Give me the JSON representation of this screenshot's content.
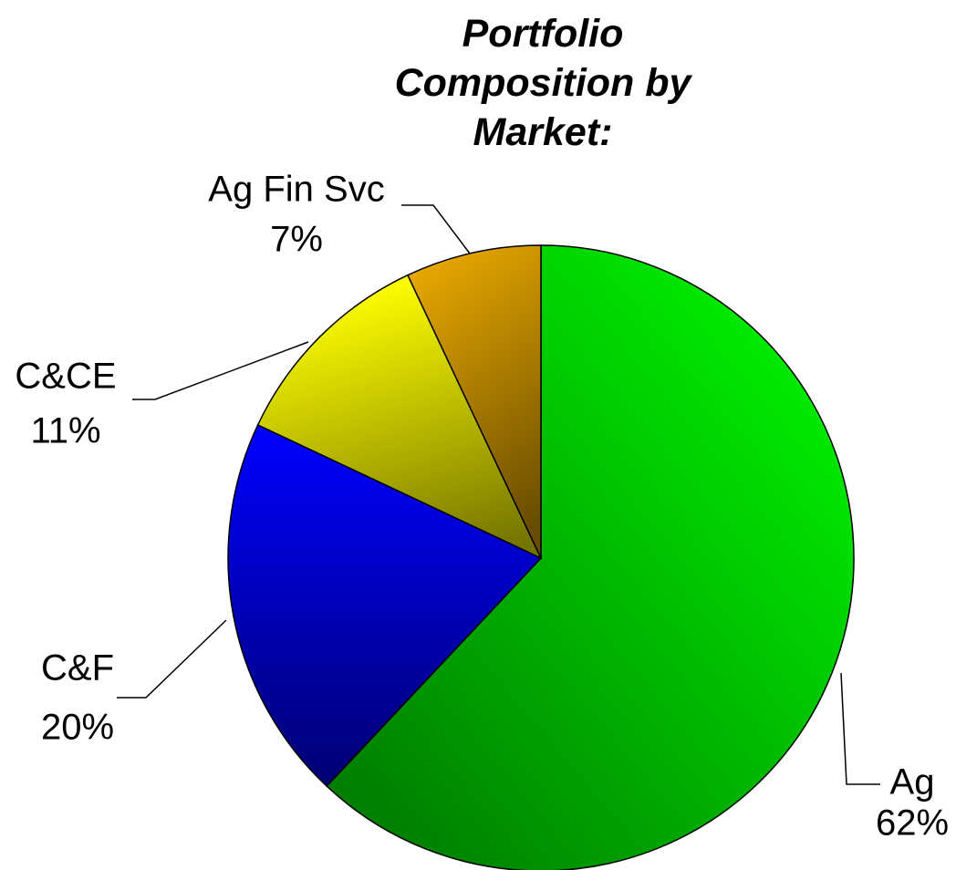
{
  "chart_data": {
    "type": "pie",
    "title": "Portfolio Composition by Market:",
    "categories": [
      "Ag",
      "C&F",
      "C&CE",
      "Ag Fin Svc"
    ],
    "values": [
      62,
      20,
      11,
      7
    ],
    "value_labels": [
      "62%",
      "20%",
      "11%",
      "7%"
    ],
    "colors": [
      "#00ff00",
      "#0000ff",
      "#ffff00",
      "#e8a800"
    ]
  }
}
